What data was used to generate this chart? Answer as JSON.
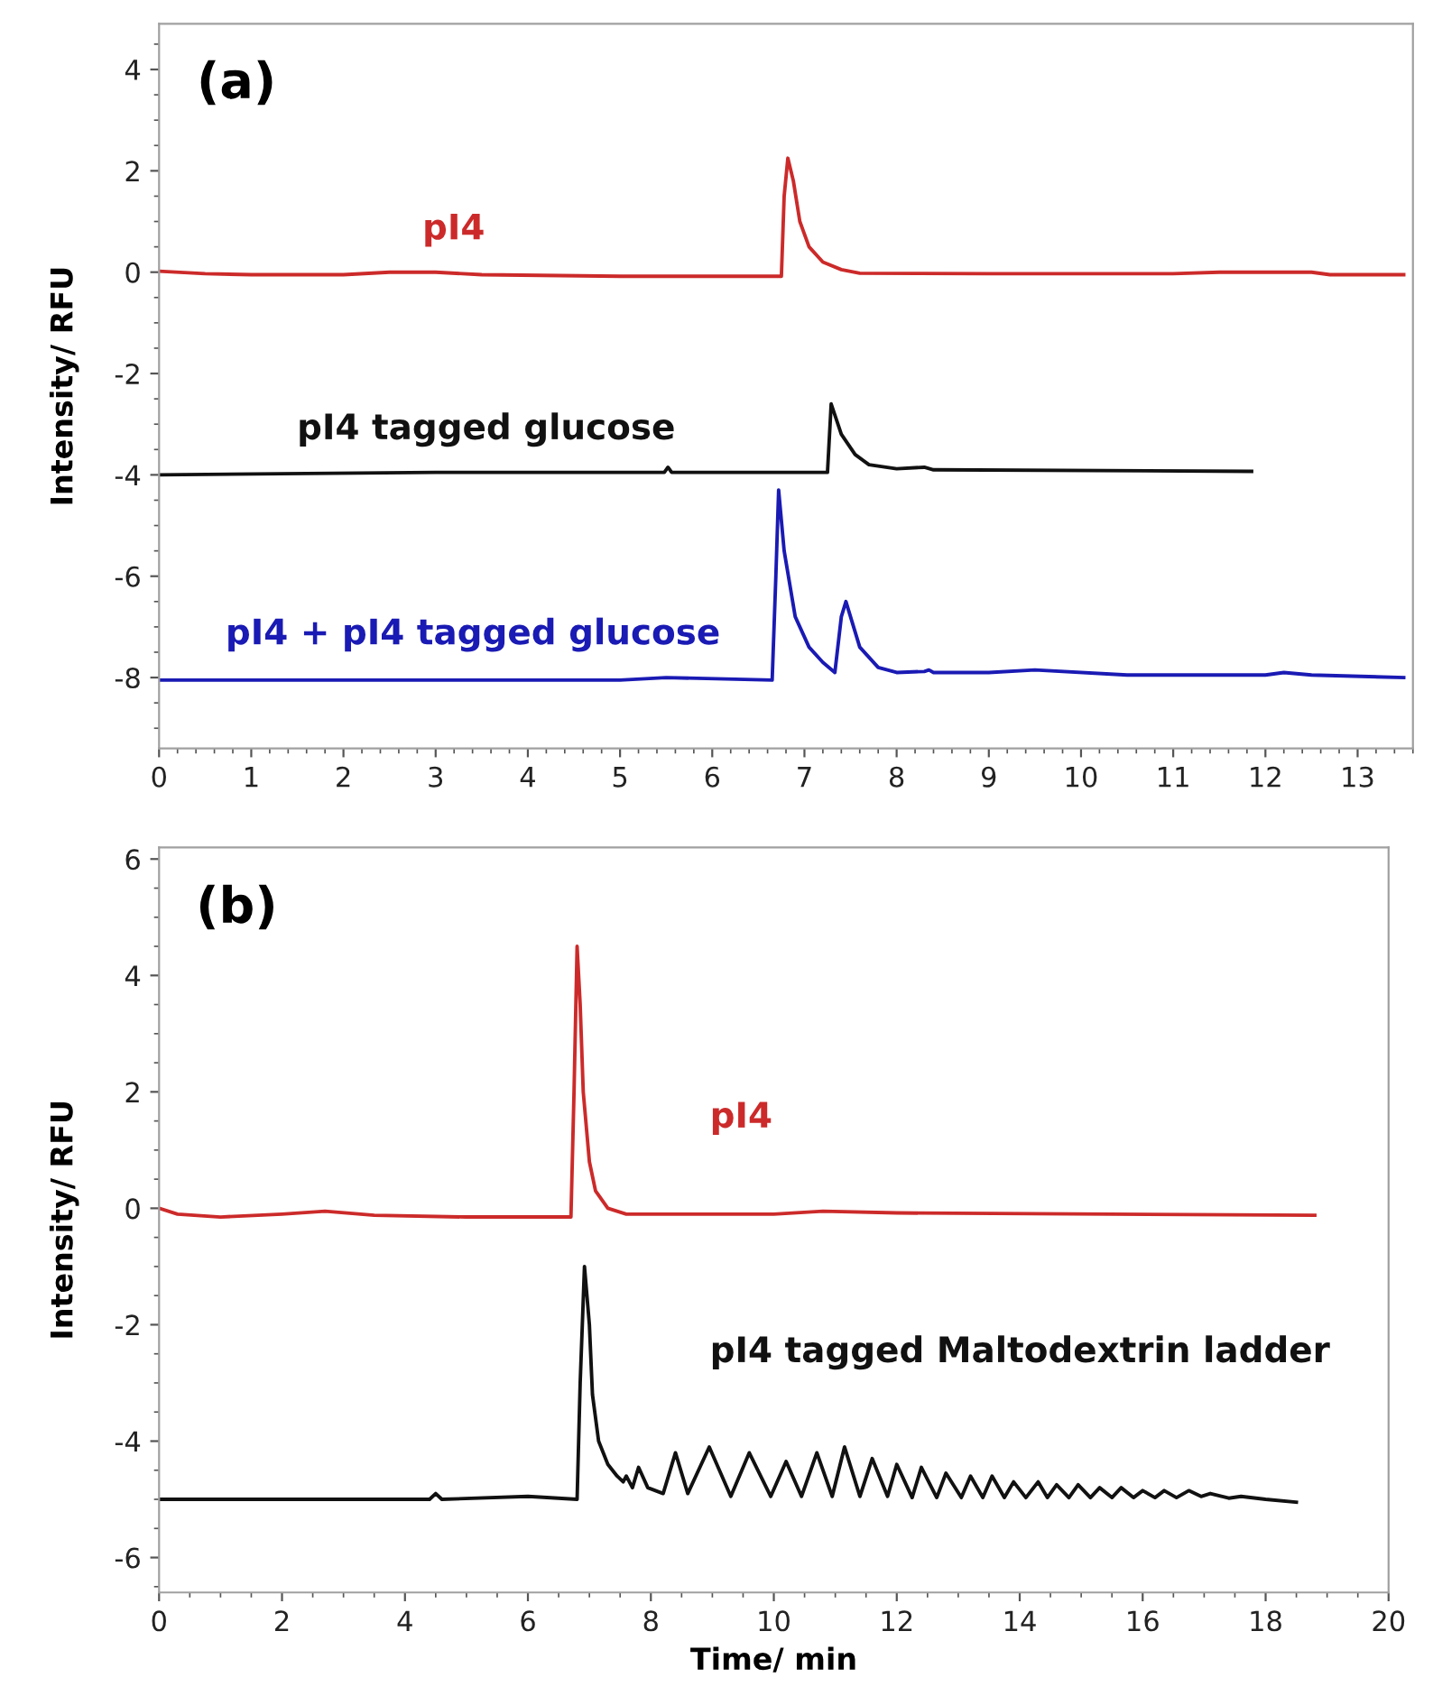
{
  "chart_data": [
    {
      "type": "line",
      "title": "(a)",
      "ylabel": "Intensity/ RFU",
      "xlim": [
        0,
        13.6
      ],
      "ylim": [
        -9.4,
        4.9
      ],
      "xticks": [
        0,
        1,
        2,
        3,
        4,
        5,
        6,
        7,
        8,
        9,
        10,
        11,
        12,
        13
      ],
      "yticks": [
        -8,
        -6,
        -4,
        -2,
        0,
        2,
        4
      ],
      "grid": false,
      "legend": false,
      "series": [
        {
          "name": "pI4",
          "color": "#cc2a2a",
          "x": [
            0,
            0.5,
            1,
            2,
            2.5,
            3,
            3.5,
            5,
            6,
            6.75,
            6.78,
            6.82,
            6.88,
            6.95,
            7.05,
            7.2,
            7.4,
            7.6,
            9,
            11,
            11.5,
            12.5,
            12.7,
            13.5
          ],
          "values": [
            0.02,
            -0.03,
            -0.05,
            -0.05,
            0.0,
            0.0,
            -0.05,
            -0.08,
            -0.08,
            -0.08,
            1.5,
            2.25,
            1.8,
            1.0,
            0.5,
            0.2,
            0.05,
            -0.02,
            -0.03,
            -0.03,
            0.0,
            0.0,
            -0.05,
            -0.05
          ]
        },
        {
          "name": "pI4 tagged glucose",
          "color": "#111111",
          "x": [
            0,
            3,
            5.48,
            5.52,
            5.56,
            7.25,
            7.29,
            7.4,
            7.55,
            7.7,
            8,
            8.3,
            8.4,
            11.85
          ],
          "values": [
            -4.0,
            -3.95,
            -3.95,
            -3.85,
            -3.95,
            -3.95,
            -2.6,
            -3.2,
            -3.6,
            -3.8,
            -3.88,
            -3.85,
            -3.9,
            -3.93
          ]
        },
        {
          "name": "pI4 + pI4 tagged glucose",
          "color": "#1a1ab4",
          "x": [
            0,
            5,
            5.5,
            6.65,
            6.69,
            6.72,
            6.78,
            6.9,
            7.05,
            7.2,
            7.33,
            7.4,
            7.45,
            7.6,
            7.8,
            8,
            8.3,
            8.35,
            8.4,
            9,
            9.5,
            10.5,
            12,
            12.2,
            12.5,
            13.5
          ],
          "values": [
            -8.05,
            -8.05,
            -8.0,
            -8.05,
            -6.0,
            -4.3,
            -5.5,
            -6.8,
            -7.4,
            -7.7,
            -7.9,
            -6.8,
            -6.5,
            -7.4,
            -7.8,
            -7.9,
            -7.88,
            -7.85,
            -7.9,
            -7.9,
            -7.85,
            -7.95,
            -7.95,
            -7.9,
            -7.95,
            -8.0
          ]
        }
      ]
    },
    {
      "type": "line",
      "title": "(b)",
      "xlabel": "Time/ min",
      "ylabel": "Intensity/ RFU",
      "xlim": [
        0,
        20
      ],
      "ylim": [
        -6.6,
        6.2
      ],
      "xticks": [
        0,
        2,
        4,
        6,
        8,
        10,
        12,
        14,
        16,
        18,
        20
      ],
      "yticks": [
        -6,
        -4,
        -2,
        0,
        2,
        4,
        6
      ],
      "grid": false,
      "legend": false,
      "series": [
        {
          "name": "pI4",
          "color": "#cc2a2a",
          "x": [
            0,
            0.3,
            1,
            2,
            2.7,
            3.5,
            5,
            6.7,
            6.75,
            6.8,
            6.85,
            6.9,
            7,
            7.1,
            7.3,
            7.6,
            10,
            10.8,
            12,
            18.8
          ],
          "values": [
            0,
            -0.1,
            -0.15,
            -0.1,
            -0.05,
            -0.12,
            -0.15,
            -0.15,
            2,
            4.5,
            3.5,
            2.0,
            0.8,
            0.3,
            0,
            -0.1,
            -0.1,
            -0.05,
            -0.08,
            -0.12
          ]
        },
        {
          "name": "pI4 tagged Maltodextrin ladder",
          "color": "#111111",
          "x": [
            0,
            4.4,
            4.5,
            4.6,
            6,
            6.8,
            6.85,
            6.92,
            7.0,
            7.05,
            7.15,
            7.3,
            7.45,
            7.55,
            7.6,
            7.7,
            7.8,
            7.95,
            8.2,
            8.4,
            8.6,
            8.95,
            9.3,
            9.6,
            9.95,
            10.2,
            10.45,
            10.7,
            10.95,
            11.15,
            11.4,
            11.6,
            11.85,
            12.0,
            12.25,
            12.4,
            12.65,
            12.8,
            13.05,
            13.2,
            13.4,
            13.55,
            13.75,
            13.9,
            14.1,
            14.3,
            14.45,
            14.6,
            14.8,
            14.95,
            15.15,
            15.3,
            15.5,
            15.65,
            15.85,
            16,
            16.2,
            16.35,
            16.55,
            16.75,
            16.95,
            17.1,
            17.4,
            17.6,
            18,
            18.5
          ],
          "values": [
            -5,
            -5,
            -4.9,
            -5,
            -4.95,
            -5,
            -3,
            -1.0,
            -2,
            -3.2,
            -4.0,
            -4.4,
            -4.6,
            -4.7,
            -4.6,
            -4.8,
            -4.45,
            -4.8,
            -4.9,
            -4.2,
            -4.9,
            -4.1,
            -4.95,
            -4.2,
            -4.95,
            -4.35,
            -4.95,
            -4.2,
            -4.95,
            -4.1,
            -4.95,
            -4.3,
            -4.95,
            -4.4,
            -4.97,
            -4.45,
            -4.97,
            -4.55,
            -4.97,
            -4.6,
            -4.97,
            -4.6,
            -4.97,
            -4.7,
            -4.97,
            -4.7,
            -4.97,
            -4.75,
            -4.97,
            -4.75,
            -4.97,
            -4.8,
            -4.97,
            -4.8,
            -4.97,
            -4.85,
            -4.97,
            -4.85,
            -4.97,
            -4.85,
            -4.95,
            -4.9,
            -4.98,
            -4.95,
            -5.0,
            -5.05
          ]
        }
      ]
    }
  ]
}
